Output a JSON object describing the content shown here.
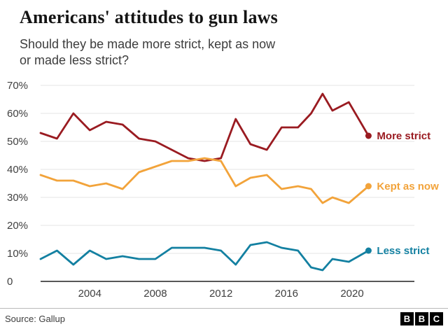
{
  "header": {
    "title": "Americans' attitudes to gun laws",
    "subtitle_line1": "Should they be made more strict, kept as now",
    "subtitle_line2": "or made less strict?"
  },
  "footer": {
    "source": "Source: Gallup",
    "logo_letters": [
      "B",
      "B",
      "C"
    ]
  },
  "chart_data": {
    "type": "line",
    "title": "Americans' attitudes to gun laws",
    "subtitle": "Should they be made more strict, kept as now or made less strict?",
    "xlabel": "",
    "ylabel": "",
    "grid": true,
    "legend_position": "end-of-line-labels",
    "xlim": [
      2001,
      2023.8
    ],
    "ylim": [
      0,
      70
    ],
    "x": [
      2001,
      2002,
      2003,
      2004,
      2005,
      2006,
      2007,
      2008,
      2009,
      2010,
      2011,
      2012,
      2012.9,
      2013.8,
      2014.8,
      2015.7,
      2016.7,
      2017.5,
      2018.2,
      2018.8,
      2019.8,
      2021
    ],
    "series": [
      {
        "name": "More strict",
        "color": "#9a1b21",
        "values": [
          53,
          51,
          60,
          54,
          57,
          56,
          51,
          50,
          47,
          44,
          43,
          44,
          58,
          49,
          47,
          55,
          55,
          60,
          67,
          61,
          64,
          52
        ]
      },
      {
        "name": "Kept as now",
        "color": "#f2a33a",
        "values": [
          38,
          36,
          36,
          34,
          35,
          33,
          39,
          41,
          43,
          43,
          44,
          43,
          34,
          37,
          38,
          33,
          34,
          33,
          28,
          30,
          28,
          34
        ]
      },
      {
        "name": "Less strict",
        "color": "#1380a1",
        "values": [
          8,
          11,
          6,
          11,
          8,
          9,
          8,
          8,
          12,
          12,
          12,
          11,
          6,
          13,
          14,
          12,
          11,
          5,
          4,
          8,
          7,
          11
        ]
      }
    ],
    "xtick_values": [
      2004,
      2008,
      2012,
      2016,
      2020
    ],
    "xtick_labels": [
      "2004",
      "2008",
      "2012",
      "2016",
      "2020"
    ],
    "ytick_values": [
      0,
      10,
      20,
      30,
      40,
      50,
      60,
      70
    ],
    "ytick_labels": [
      "0",
      "10%",
      "20%",
      "30%",
      "40%",
      "50%",
      "60%",
      "70%"
    ]
  }
}
